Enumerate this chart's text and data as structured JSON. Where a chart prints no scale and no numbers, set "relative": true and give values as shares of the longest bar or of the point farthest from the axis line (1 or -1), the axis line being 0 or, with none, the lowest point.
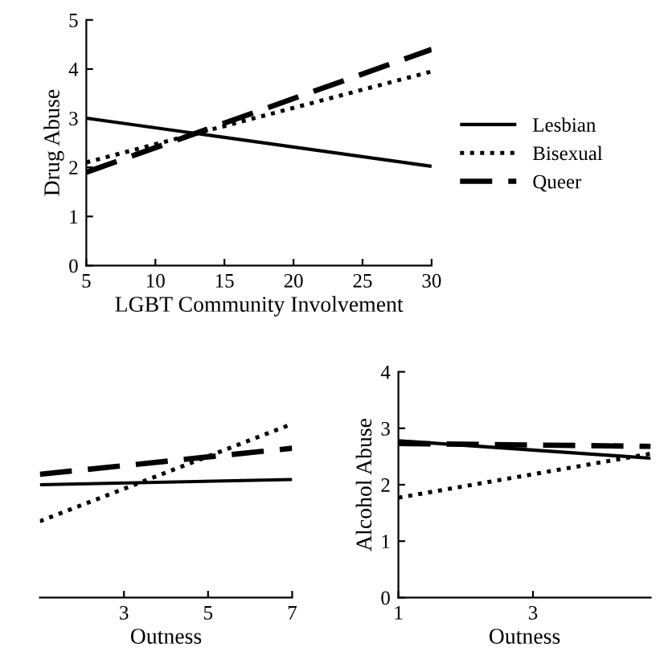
{
  "chart_data": [
    {
      "type": "line",
      "xlabel": "LGBT Community Involvement",
      "ylabel": "Drug Abuse",
      "x": [
        5,
        30
      ],
      "xlim": [
        5,
        30
      ],
      "xticks": [
        5,
        10,
        15,
        20,
        25,
        30
      ],
      "ylim": [
        0,
        5
      ],
      "yticks": [
        0,
        1,
        2,
        3,
        4,
        5
      ],
      "legend": "right",
      "grid": false,
      "series": [
        {
          "name": "Lesbian",
          "color": "#000000",
          "line_style": "solid",
          "values": [
            3.0,
            2.02
          ]
        },
        {
          "name": "Bisexual",
          "color": "#000000",
          "line_style": "dotted",
          "values": [
            2.1,
            3.95
          ]
        },
        {
          "name": "Queer",
          "color": "#000000",
          "line_style": "dashed",
          "values": [
            1.9,
            4.4
          ]
        }
      ]
    },
    {
      "type": "line",
      "xlabel": "Outness",
      "relative": true,
      "x": [
        1,
        7
      ],
      "xlim": [
        1,
        7
      ],
      "xticks": [
        3,
        5,
        7
      ],
      "tick_labels": "x",
      "grid": false,
      "series": [
        {
          "color": "#000000",
          "line_style": "solid",
          "values": [
            0.65,
            0.68
          ]
        },
        {
          "color": "#000000",
          "line_style": "dotted",
          "values": [
            0.44,
            1.0
          ]
        },
        {
          "color": "#000000",
          "line_style": "dashed",
          "values": [
            0.71,
            0.86
          ]
        }
      ]
    },
    {
      "type": "line",
      "xlabel": "Outness",
      "ylabel": "Alcohol Abuse",
      "x": [
        1,
        4.75
      ],
      "xlim": [
        1,
        4.75
      ],
      "xticks": [
        1,
        3
      ],
      "ylim": [
        0,
        4
      ],
      "yticks": [
        0,
        1,
        2,
        3,
        4
      ],
      "grid": false,
      "series": [
        {
          "color": "#000000",
          "line_style": "solid",
          "values": [
            2.78,
            2.47
          ]
        },
        {
          "color": "#000000",
          "line_style": "dotted",
          "values": [
            1.77,
            2.55
          ]
        },
        {
          "color": "#000000",
          "line_style": "dashed",
          "values": [
            2.73,
            2.68
          ]
        }
      ]
    }
  ]
}
